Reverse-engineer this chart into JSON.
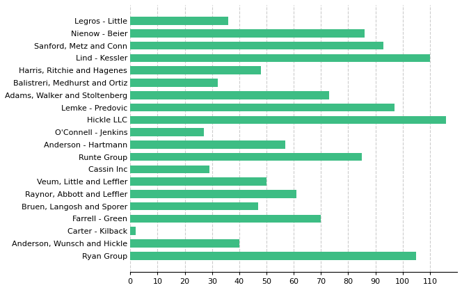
{
  "categories": [
    "Legros - Little",
    "Nienow - Beier",
    "Sanford, Metz and Conn",
    "Lind - Kessler",
    "Harris, Ritchie and Hagenes",
    "Balistreri, Medhurst and Ortiz",
    "Adams, Walker and Stoltenberg",
    "Lemke - Predovic",
    "Hickle LLC",
    "O'Connell - Jenkins",
    "Anderson - Hartmann",
    "Runte Group",
    "Cassin Inc",
    "Veum, Little and Leffler",
    "Raynor, Abbott and Leffler",
    "Bruen, Langosh and Sporer",
    "Farrell - Green",
    "Carter - Kilback",
    "Anderson, Wunsch and Hickle",
    "Ryan Group"
  ],
  "values": [
    36,
    86,
    93,
    110,
    48,
    32,
    73,
    97,
    116,
    27,
    57,
    85,
    29,
    50,
    61,
    47,
    70,
    2,
    40,
    105
  ],
  "bar_color": "#3DBD84",
  "background_color": "#ffffff",
  "grid_color": "#cccccc",
  "grid_style": "--",
  "xlim": [
    0,
    120
  ],
  "xticks": [
    0,
    10,
    20,
    30,
    40,
    50,
    60,
    70,
    80,
    90,
    100,
    110
  ],
  "tick_fontsize": 8,
  "label_fontsize": 8,
  "bar_height": 0.65
}
